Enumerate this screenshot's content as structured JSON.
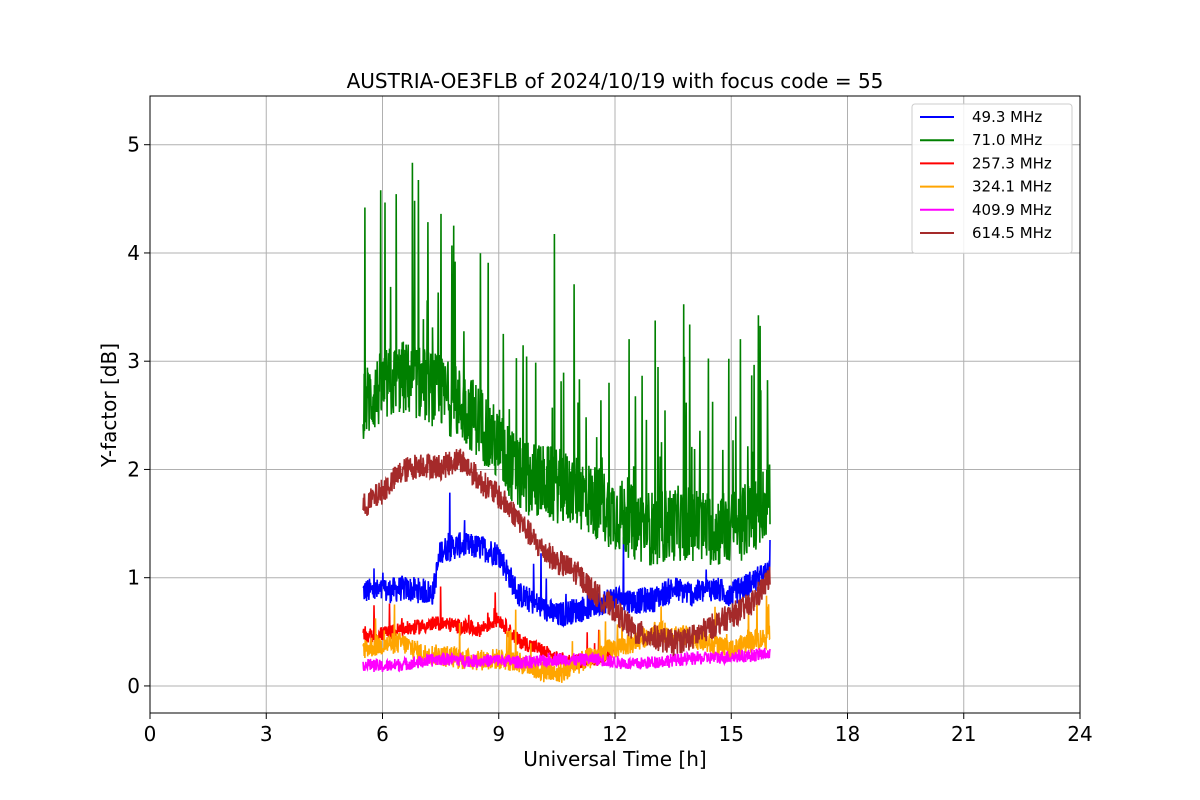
{
  "chart_data": {
    "type": "line",
    "title": "AUSTRIA-OE3FLB of 2024/10/19 with focus code = 55",
    "xlabel": "Universal Time [h]",
    "ylabel": "Y-factor [dB]",
    "xlim": [
      0,
      24
    ],
    "ylim": [
      -0.25,
      5.45
    ],
    "xticks": [
      0,
      3,
      6,
      9,
      12,
      15,
      18,
      21,
      24
    ],
    "yticks": [
      0,
      1,
      2,
      3,
      4,
      5
    ],
    "xtick_labels": [
      "0",
      "3",
      "6",
      "9",
      "12",
      "15",
      "18",
      "21",
      "24"
    ],
    "ytick_labels": [
      "0",
      "1",
      "2",
      "3",
      "4",
      "5"
    ],
    "grid": true,
    "legend_position": "top-right",
    "series": [
      {
        "name": " 49.3 MHz",
        "color": "#0000ff",
        "x": [
          5.5,
          6.0,
          6.5,
          7.0,
          7.3,
          7.5,
          8.0,
          8.5,
          9.0,
          9.5,
          10.0,
          10.5,
          11.0,
          11.5,
          12.0,
          12.5,
          13.0,
          13.5,
          14.0,
          14.5,
          15.0,
          15.5,
          16.0
        ],
        "values": [
          0.88,
          0.87,
          0.9,
          0.88,
          0.86,
          1.25,
          1.3,
          1.28,
          1.22,
          0.85,
          0.75,
          0.65,
          0.7,
          0.75,
          0.82,
          0.78,
          0.8,
          0.9,
          0.85,
          0.9,
          0.85,
          0.95,
          1.05
        ]
      },
      {
        "name": " 71.0 MHz",
        "color": "#008000",
        "x": [
          5.5,
          6.0,
          6.5,
          7.0,
          7.5,
          8.0,
          8.5,
          9.0,
          9.5,
          10.0,
          10.5,
          11.0,
          11.5,
          12.0,
          12.5,
          13.0,
          13.5,
          14.0,
          14.5,
          15.0,
          15.5,
          16.0
        ],
        "values": [
          2.6,
          2.75,
          2.85,
          2.8,
          2.7,
          2.6,
          2.45,
          2.2,
          1.95,
          1.9,
          1.85,
          1.8,
          1.7,
          1.6,
          1.5,
          1.45,
          1.5,
          1.5,
          1.45,
          1.45,
          1.55,
          1.75
        ]
      },
      {
        "name": "257.3 MHz",
        "color": "#ff0000",
        "x": [
          5.5,
          6.0,
          6.5,
          7.0,
          7.5,
          8.0,
          8.5,
          9.0,
          9.5,
          10.0,
          10.5,
          11.0,
          11.5,
          12.0
        ],
        "values": [
          0.45,
          0.48,
          0.52,
          0.55,
          0.58,
          0.55,
          0.52,
          0.62,
          0.42,
          0.35,
          0.25,
          0.22,
          0.25,
          0.3
        ]
      },
      {
        "name": "324.1 MHz",
        "color": "#ffa500",
        "x": [
          5.5,
          6.0,
          6.5,
          7.0,
          7.5,
          8.0,
          8.5,
          9.0,
          9.5,
          10.0,
          10.5,
          11.0,
          11.5,
          12.0,
          12.5,
          13.0,
          13.5,
          14.0,
          14.5,
          15.0,
          15.5,
          16.0
        ],
        "values": [
          0.35,
          0.38,
          0.4,
          0.3,
          0.28,
          0.25,
          0.24,
          0.25,
          0.22,
          0.15,
          0.1,
          0.2,
          0.28,
          0.35,
          0.4,
          0.5,
          0.48,
          0.45,
          0.38,
          0.32,
          0.42,
          0.45
        ]
      },
      {
        "name": "409.9 MHz",
        "color": "#ff00ff",
        "x": [
          5.5,
          6.0,
          6.5,
          7.0,
          7.5,
          8.0,
          8.5,
          9.0,
          9.5,
          10.0,
          10.5,
          11.0,
          11.5,
          12.0,
          12.5,
          13.0,
          13.5,
          14.0,
          14.5,
          15.0,
          15.5,
          16.0
        ],
        "values": [
          0.2,
          0.18,
          0.2,
          0.22,
          0.25,
          0.24,
          0.23,
          0.24,
          0.22,
          0.22,
          0.25,
          0.24,
          0.25,
          0.22,
          0.2,
          0.22,
          0.24,
          0.25,
          0.26,
          0.27,
          0.28,
          0.3
        ]
      },
      {
        "name": "614.5 MHz",
        "color": "#a52a2a",
        "x": [
          5.5,
          6.0,
          6.5,
          7.0,
          7.5,
          8.0,
          8.5,
          9.0,
          9.5,
          10.0,
          10.5,
          11.0,
          11.5,
          12.0,
          12.5,
          13.0,
          13.5,
          14.0,
          14.5,
          15.0,
          15.5,
          16.0
        ],
        "values": [
          1.65,
          1.8,
          1.98,
          2.05,
          2.02,
          2.1,
          1.9,
          1.75,
          1.55,
          1.3,
          1.15,
          1.05,
          0.85,
          0.7,
          0.5,
          0.45,
          0.4,
          0.45,
          0.55,
          0.65,
          0.75,
          1.0
        ]
      }
    ]
  }
}
